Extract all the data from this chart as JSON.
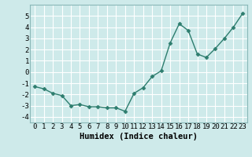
{
  "x": [
    0,
    1,
    2,
    3,
    4,
    5,
    6,
    7,
    8,
    9,
    10,
    11,
    12,
    13,
    14,
    15,
    16,
    17,
    18,
    19,
    20,
    21,
    22,
    23
  ],
  "y": [
    -1.3,
    -1.5,
    -1.9,
    -2.1,
    -3.0,
    -2.9,
    -3.1,
    -3.1,
    -3.2,
    -3.2,
    -3.5,
    -1.9,
    -1.4,
    -0.4,
    0.1,
    2.6,
    4.3,
    3.7,
    1.6,
    1.3,
    2.1,
    3.0,
    4.0,
    5.2
  ],
  "xlabel": "Humidex (Indice chaleur)",
  "ylim": [
    -4.5,
    6.0
  ],
  "xlim": [
    -0.5,
    23.5
  ],
  "yticks": [
    -4,
    -3,
    -2,
    -1,
    0,
    1,
    2,
    3,
    4,
    5
  ],
  "xticks": [
    0,
    1,
    2,
    3,
    4,
    5,
    6,
    7,
    8,
    9,
    10,
    11,
    12,
    13,
    14,
    15,
    16,
    17,
    18,
    19,
    20,
    21,
    22,
    23
  ],
  "line_color": "#2d7d6e",
  "marker": "D",
  "marker_size": 2.5,
  "bg_color": "#ceeaea",
  "grid_color": "#b0d8d8",
  "tick_fontsize": 6.5,
  "label_fontsize": 7.5
}
